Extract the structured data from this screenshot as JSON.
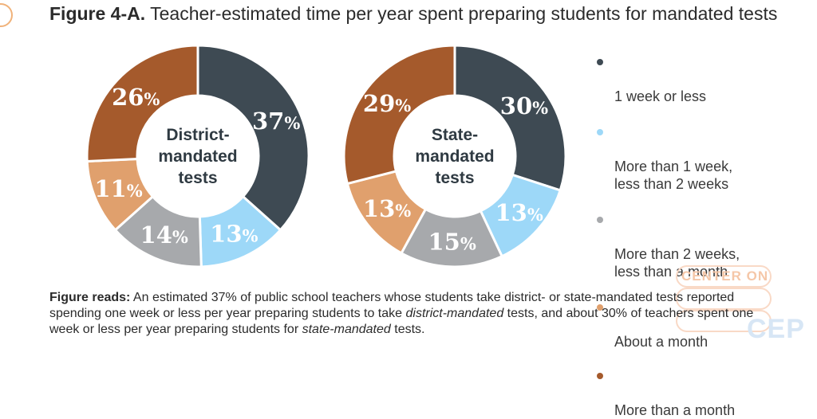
{
  "title": {
    "label": "Figure 4-A.",
    "text": "Teacher-estimated time per year spent preparing students for mandated tests"
  },
  "colors": {
    "week_or_less": "#3e4a53",
    "one_to_two_weeks": "#9dd8f8",
    "two_weeks_to_month": "#a7a9ac",
    "about_month": "#e0a06d",
    "more_than_month": "#a55a2c"
  },
  "legend": [
    {
      "label": "1 week or less",
      "color": "#3e4a53"
    },
    {
      "label": "More than 1 week,\nless than 2 weeks",
      "color": "#9dd8f8"
    },
    {
      "label": "More than 2 weeks,\nless than a month",
      "color": "#a7a9ac"
    },
    {
      "label": "About a month",
      "color": "#e0a06d"
    },
    {
      "label": "More than a month",
      "color": "#a55a2c"
    }
  ],
  "chart_data": [
    {
      "type": "pie",
      "center_label": [
        "District-",
        "mandated",
        "tests"
      ],
      "categories": [
        "1 week or less",
        "More than 1 week, less than 2 weeks",
        "More than 2 weeks, less than a month",
        "About a month",
        "More than a month"
      ],
      "values": [
        37,
        13,
        14,
        11,
        26
      ],
      "data_labels": [
        "37%",
        "13%",
        "14%",
        "11%",
        "26%"
      ],
      "colors": [
        "#3e4a53",
        "#9dd8f8",
        "#a7a9ac",
        "#e0a06d",
        "#a55a2c"
      ]
    },
    {
      "type": "pie",
      "center_label": [
        "State-",
        "mandated",
        "tests"
      ],
      "categories": [
        "1 week or less",
        "More than 1 week, less than 2 weeks",
        "More than 2 weeks, less than a month",
        "About a month",
        "More than a month"
      ],
      "values": [
        30,
        13,
        15,
        13,
        29
      ],
      "data_labels": [
        "30%",
        "13%",
        "15%",
        "13%",
        "29%"
      ],
      "colors": [
        "#3e4a53",
        "#9dd8f8",
        "#a7a9ac",
        "#e0a06d",
        "#a55a2c"
      ]
    }
  ],
  "figure_reads": {
    "label": "Figure reads:",
    "text_1": " An estimated 37% of public school teachers whose students take district- or state-mandated tests reported spending one week or less per year preparing students to take ",
    "em_1": "district-mandated",
    "text_2": " tests, and about 30% of teachers spent one week or less per year preparing students for ",
    "em_2": "state-mandated",
    "text_3": " tests."
  },
  "watermark": {
    "line": "CENTER ON",
    "logo": "CEP"
  }
}
